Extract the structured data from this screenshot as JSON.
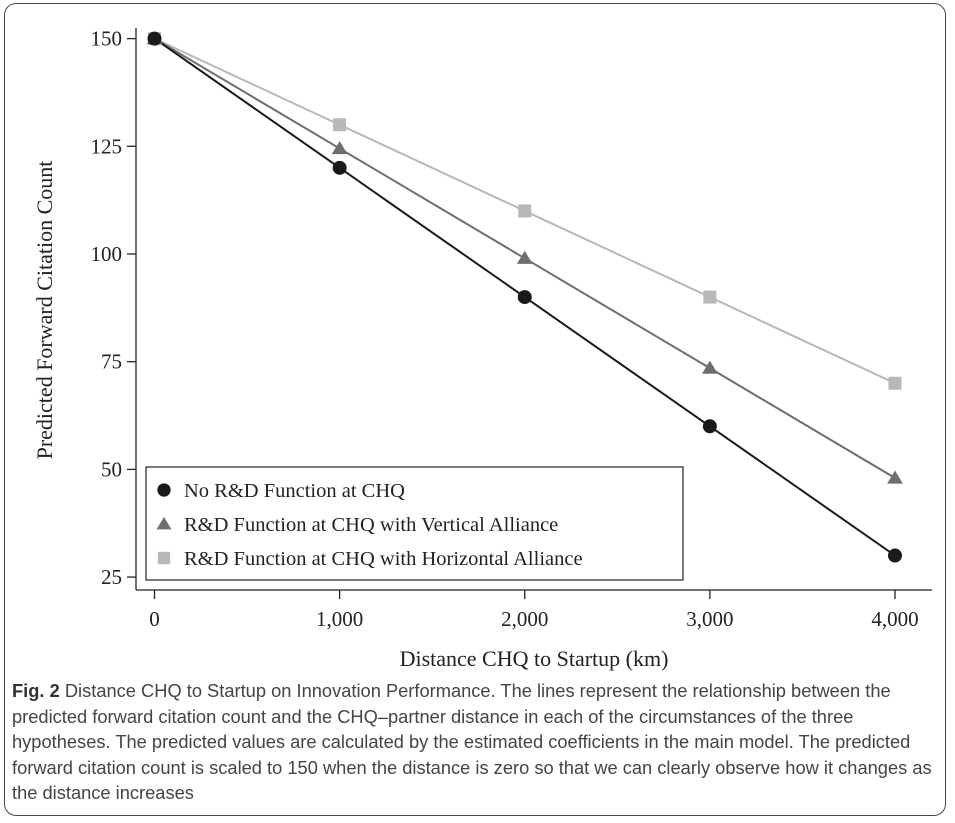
{
  "chart_data": {
    "type": "line",
    "xlabel": "Distance CHQ to Startup (km)",
    "ylabel": "Predicted Forward Citation Count",
    "x": [
      0,
      1000,
      2000,
      3000,
      4000
    ],
    "xticks": [
      0,
      1000,
      2000,
      3000,
      4000
    ],
    "xtick_labels": [
      "0",
      "1,000",
      "2,000",
      "3,000",
      "4,000"
    ],
    "yticks": [
      25,
      50,
      75,
      100,
      125,
      150
    ],
    "ytick_labels": [
      "25",
      "50",
      "75",
      "100",
      "125",
      "150"
    ],
    "xlim": [
      -100,
      4200
    ],
    "ylim": [
      22,
      152
    ],
    "grid": false,
    "legend_position": "bottom-left",
    "series": [
      {
        "name": "No R&D Function at CHQ",
        "values": [
          150,
          120,
          90,
          60,
          30
        ],
        "color": "#1a1a1a",
        "marker": "circle"
      },
      {
        "name": "R&D Function at CHQ with Vertical Alliance",
        "values": [
          150,
          124.5,
          99,
          73.5,
          48
        ],
        "color": "#6e6e6e",
        "marker": "triangle"
      },
      {
        "name": "R&D Function at CHQ with Horizontal Alliance",
        "values": [
          150,
          130,
          110,
          90,
          70
        ],
        "color": "#b8b8b8",
        "marker": "square"
      }
    ]
  },
  "caption": {
    "label": "Fig. 2",
    "text": " Distance CHQ to Startup on Innovation Performance. The lines represent the relationship between the predicted forward citation count and the CHQ–partner distance in each of the circumstances of the three hypotheses. The predicted values are calculated by the estimated coefficients in the main model. The predicted forward citation count is scaled to 150 when the distance is zero so that we can clearly observe how it changes as the distance increases"
  }
}
